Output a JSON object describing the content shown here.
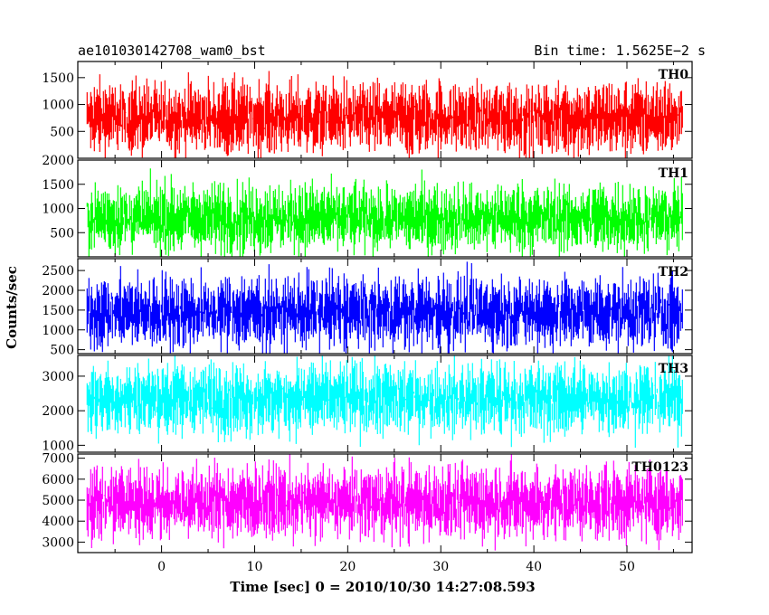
{
  "header": {
    "left": "ae101030142708_wam0_bst",
    "right": "Bin time: 1.5625E−2 s"
  },
  "chart_data": {
    "type": "line",
    "xlabel": "Time [sec] 0 = 2010/10/30 14:27:08.593",
    "ylabel": "Counts/sec",
    "xlim": [
      -9,
      57
    ],
    "x_ticks": [
      "0",
      "10",
      "20",
      "30",
      "40",
      "50"
    ],
    "x_start": -8,
    "x_end": 56,
    "series": [
      {
        "name": "TH0",
        "color": "#ff0000",
        "ylim": [
          0,
          1800
        ],
        "y_ticks": [
          "500",
          "1000",
          "1500"
        ],
        "base": 750,
        "spread": 600
      },
      {
        "name": "TH1",
        "color": "#00ff00",
        "ylim": [
          0,
          2000
        ],
        "y_ticks": [
          "500",
          "1000",
          "1500",
          "2000"
        ],
        "base": 800,
        "spread": 650
      },
      {
        "name": "TH2",
        "color": "#0000ff",
        "ylim": [
          400,
          2800
        ],
        "y_ticks": [
          "500",
          "1000",
          "1500",
          "2000",
          "2500"
        ],
        "base": 1450,
        "spread": 850
      },
      {
        "name": "TH3",
        "color": "#00ffff",
        "ylim": [
          800,
          3600
        ],
        "y_ticks": [
          "1000",
          "2000",
          "3000"
        ],
        "base": 2350,
        "spread": 950
      },
      {
        "name": "TH0123",
        "color": "#ff00ff",
        "ylim": [
          2500,
          7200
        ],
        "y_ticks": [
          "3000",
          "4000",
          "5000",
          "6000",
          "7000"
        ],
        "base": 4900,
        "spread": 1600
      }
    ]
  }
}
